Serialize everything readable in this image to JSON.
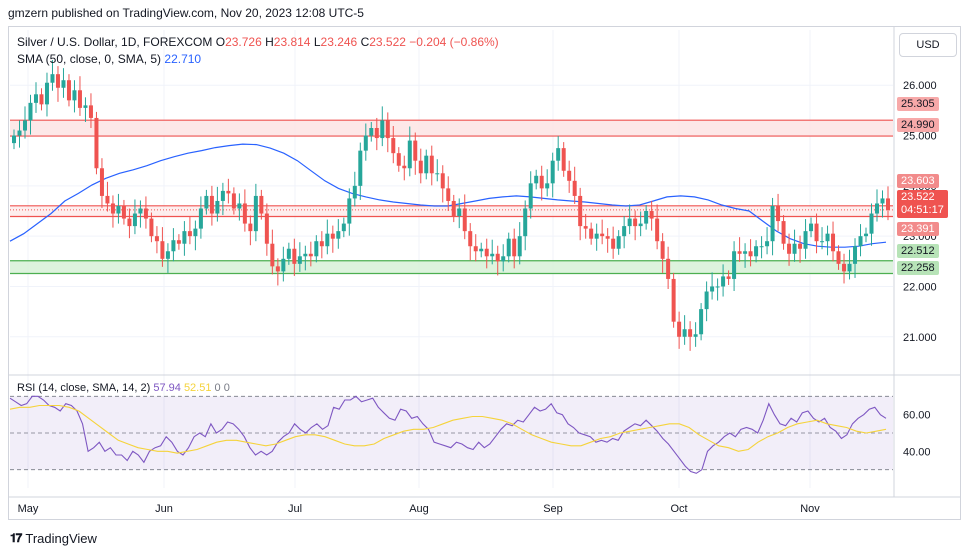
{
  "header": {
    "publisher_line": "gmzern published on TradingView.com, Nov 20, 2023 12:08 UTC-5"
  },
  "legend": {
    "symbol": "Silver / U.S. Dollar, 1D, FOREXCOM",
    "o_label": "O",
    "o_value": "23.726",
    "h_label": "H",
    "h_value": "23.814",
    "l_label": "L",
    "l_value": "23.246",
    "c_label": "C",
    "c_value": "23.522",
    "change": "−0.204 (−0.86%)",
    "sma_label": "SMA (50, close, 0, SMA, 5)",
    "sma_value": "22.710",
    "rsi_label": "RSI (14, close, SMA, 14, 2)",
    "rsi_value": "57.94",
    "rsi_sma_value": "52.51",
    "rsi_zero1": "0",
    "rsi_zero2": "0"
  },
  "currency_button": "USD",
  "footer_brand": "TradingView",
  "colors": {
    "up": "#26a69a",
    "down": "#ef5350",
    "sma": "#2962ff",
    "rsi": "#7e57c2",
    "rsi_sma": "#f5d33b",
    "resistance_fill": "#fde2e2",
    "support_fill": "#d9f2d9"
  },
  "chart_data": {
    "type": "candlestick",
    "price_axis": {
      "ticks": [
        "26.000",
        "25.000",
        "24.000",
        "23.000",
        "22.000",
        "21.000"
      ],
      "range": [
        20.3,
        26.8
      ]
    },
    "time_axis": {
      "labels": [
        "May",
        "Jun",
        "Jul",
        "Aug",
        "Sep",
        "Oct",
        "Nov"
      ]
    },
    "zones": [
      {
        "name": "resistance",
        "top": 25.305,
        "bottom": 24.99,
        "labels": [
          "25.305",
          "24.990"
        ]
      },
      {
        "name": "current",
        "top": 23.603,
        "bottom": 23.391,
        "labels": [
          "23.603",
          "23.391"
        ]
      },
      {
        "name": "support",
        "top": 22.512,
        "bottom": 22.258,
        "labels": [
          "22.512",
          "22.258"
        ]
      }
    ],
    "last_price": {
      "value": 23.522,
      "label": "23.522",
      "countdown": "04:51:17"
    },
    "closes": [
      25.0,
      25.1,
      25.3,
      25.65,
      25.82,
      25.62,
      26.05,
      26.22,
      25.95,
      26.1,
      25.7,
      25.9,
      25.55,
      25.6,
      25.35,
      24.35,
      23.8,
      23.65,
      23.45,
      23.6,
      23.35,
      23.2,
      23.45,
      23.55,
      23.35,
      23.0,
      22.9,
      22.55,
      22.7,
      22.92,
      22.85,
      23.1,
      23.0,
      23.15,
      23.55,
      23.8,
      23.45,
      23.7,
      23.9,
      23.85,
      23.55,
      23.65,
      23.25,
      23.1,
      23.8,
      23.45,
      22.85,
      22.4,
      22.3,
      22.55,
      22.75,
      22.45,
      22.6,
      22.65,
      22.6,
      22.9,
      22.8,
      23.05,
      22.95,
      23.1,
      23.25,
      23.75,
      24.0,
      24.7,
      25.0,
      25.15,
      24.95,
      25.3,
      24.95,
      24.65,
      24.4,
      24.35,
      24.9,
      24.5,
      24.25,
      24.6,
      24.25,
      24.25,
      23.95,
      23.7,
      23.4,
      23.55,
      23.1,
      22.8,
      22.7,
      22.75,
      22.6,
      22.65,
      22.5,
      22.6,
      22.95,
      22.6,
      23.0,
      23.55,
      24.05,
      24.2,
      23.95,
      24.05,
      24.5,
      24.75,
      24.3,
      24.1,
      23.8,
      23.2,
      23.15,
      22.95,
      23.05,
      23.0,
      22.95,
      22.75,
      23.0,
      23.2,
      23.35,
      23.2,
      23.25,
      23.5,
      23.35,
      22.9,
      22.55,
      22.15,
      21.3,
      21.0,
      21.15,
      21.0,
      21.05,
      21.55,
      21.9,
      22.0,
      22.0,
      22.2,
      22.15,
      22.7,
      22.65,
      22.7,
      22.6,
      22.8,
      22.8,
      22.9,
      23.6,
      23.3,
      22.85,
      22.65,
      22.85,
      22.75,
      23.1,
      23.25,
      22.9,
      22.9,
      23.05,
      22.7,
      22.45,
      22.3,
      22.45,
      22.8,
      23.0,
      23.05,
      23.45,
      23.65,
      23.75,
      23.52
    ],
    "sma50": [
      22.9,
      23.05,
      23.25,
      23.45,
      23.7,
      23.85,
      24.02,
      24.15,
      24.25,
      24.32,
      24.4,
      24.5,
      24.58,
      24.65,
      24.7,
      24.76,
      24.8,
      24.83,
      24.82,
      24.75,
      24.65,
      24.5,
      24.3,
      24.1,
      23.95,
      23.85,
      23.78,
      23.72,
      23.68,
      23.65,
      23.62,
      23.6,
      23.6,
      23.65,
      23.7,
      23.75,
      23.78,
      23.8,
      23.78,
      23.75,
      23.72,
      23.7,
      23.68,
      23.65,
      23.62,
      23.6,
      23.62,
      23.7,
      23.78,
      23.8,
      23.78,
      23.72,
      23.62,
      23.55,
      23.5,
      23.3,
      23.1,
      22.95,
      22.85,
      22.8,
      22.78,
      22.78,
      22.8,
      22.85,
      22.88
    ],
    "rsi": [
      69,
      67,
      65,
      66,
      70,
      70,
      68,
      65,
      64,
      62,
      66,
      65,
      62,
      55,
      40,
      42,
      45,
      40,
      42,
      38,
      38,
      35,
      40,
      38,
      34,
      40,
      42,
      43,
      48,
      45,
      40,
      38,
      42,
      48,
      50,
      48,
      55,
      50,
      52,
      56,
      55,
      52,
      48,
      42,
      38,
      40,
      38,
      40,
      45,
      48,
      50,
      55,
      52,
      50,
      53,
      55,
      52,
      54,
      64,
      63,
      68,
      68,
      70,
      67,
      68,
      69,
      64,
      61,
      58,
      57,
      63,
      62,
      58,
      59,
      55,
      52,
      45,
      44,
      43,
      42,
      45,
      44,
      42,
      41,
      45,
      42,
      44,
      48,
      52,
      55,
      54,
      57,
      56,
      60,
      64,
      62,
      63,
      66,
      61,
      60,
      55,
      53,
      50,
      49,
      48,
      45,
      46,
      45,
      47,
      46,
      51,
      53,
      55,
      54,
      57,
      54,
      51,
      47,
      44,
      40,
      36,
      32,
      29,
      28,
      30,
      40,
      43,
      45,
      48,
      50,
      48,
      52,
      53,
      52,
      50,
      57,
      66,
      60,
      55,
      54,
      58,
      56,
      61,
      62,
      58,
      56,
      58,
      53,
      51,
      47,
      49,
      55,
      58,
      60,
      63,
      64,
      60,
      58
    ],
    "rsi_sma": [
      63,
      64,
      64,
      65,
      65,
      65,
      64,
      62,
      58,
      54,
      50,
      46,
      44,
      42,
      41,
      40,
      40,
      39,
      40,
      41,
      43,
      45,
      46,
      46,
      45,
      44,
      43,
      44,
      46,
      48,
      49,
      49,
      48,
      46,
      44,
      43,
      43,
      44,
      47,
      49,
      51,
      52,
      52,
      53,
      55,
      57,
      58,
      59,
      59,
      58,
      57,
      55,
      52,
      49,
      47,
      45,
      44,
      43,
      43,
      45,
      47,
      48,
      50,
      51,
      52,
      53,
      54,
      55,
      55,
      53,
      49,
      46,
      43,
      42,
      40,
      41,
      45,
      48,
      50,
      53,
      55,
      56,
      57,
      55,
      54,
      53,
      51,
      50,
      51,
      52
    ],
    "rsi_axis": {
      "ticks": [
        "60.00",
        "40.00"
      ],
      "range": [
        20,
        80
      ],
      "bands": [
        70,
        50,
        30
      ]
    }
  }
}
